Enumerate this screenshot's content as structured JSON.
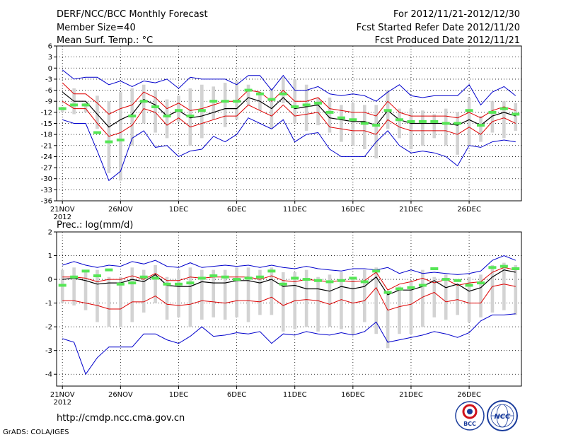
{
  "header": {
    "title": "DERF/NCC/BCC Monthly Forecast",
    "member_size": "Member Size=40",
    "variable": "Mean Surf. Temp.: °C",
    "forecast_for": "For 2012/11/21-2012/12/30",
    "started": "Fcst Started Refer Date 2012/11/20",
    "produced": "Fcst Produced Date 2012/11/21"
  },
  "footer": {
    "url": "http://cmdp.ncc.cma.gov.cn",
    "grads": "GrADS: COLA/IGES",
    "logo_bcc": "BCC",
    "logo_ncc": "NCC"
  },
  "colors": {
    "spread": "#d3d3d3",
    "member": "#55e655",
    "mean": "#000000",
    "inner": "#dd0000",
    "outer": "#0000cc"
  },
  "chart_data": [
    {
      "type": "box",
      "title": "Mean Surf. Temp.: °C",
      "ylabel": "",
      "ylim": [
        -36,
        6
      ],
      "yticks": [
        6,
        3,
        0,
        -3,
        -6,
        -9,
        -12,
        -15,
        -18,
        -21,
        -24,
        -27,
        -30,
        -33,
        -36
      ],
      "xlim": [
        0.5,
        40.5
      ],
      "x_tick_labels": [
        {
          "day": 1,
          "label": "21NOV",
          "sublabel": "2012"
        },
        {
          "day": 6,
          "label": "26NOV"
        },
        {
          "day": 11,
          "label": "1DEC"
        },
        {
          "day": 16,
          "label": "6DEC"
        },
        {
          "day": 21,
          "label": "11DEC"
        },
        {
          "day": 26,
          "label": "16DEC"
        },
        {
          "day": 31,
          "label": "21DEC"
        },
        {
          "day": 36,
          "label": "26DEC"
        }
      ],
      "days": [
        1,
        2,
        3,
        4,
        5,
        6,
        7,
        8,
        9,
        10,
        11,
        12,
        13,
        14,
        15,
        16,
        17,
        18,
        19,
        20,
        21,
        22,
        23,
        24,
        25,
        26,
        27,
        28,
        29,
        30,
        31,
        32,
        33,
        34,
        35,
        36,
        37,
        38,
        39,
        40
      ],
      "outer_upper": [
        -0.5,
        -3,
        -2.5,
        -2.5,
        -4.5,
        -3.5,
        -5,
        -3.5,
        -4,
        -3,
        -5.5,
        -2.5,
        -3,
        -3,
        -3,
        -4.5,
        -2,
        -2,
        -6,
        -2,
        -6,
        -6,
        -5,
        -7,
        -7.5,
        -7,
        -7.5,
        -9,
        -6.5,
        -4.5,
        -7.5,
        -8,
        -7.5,
        -7.5,
        -7.5,
        -4.5,
        -10,
        -6.5,
        -5,
        -7.5
      ],
      "inner_upper": [
        -4,
        -7,
        -7,
        -9.5,
        -12.5,
        -11,
        -10,
        -6.5,
        -8,
        -11,
        -9.5,
        -11.5,
        -11,
        -10,
        -9,
        -9,
        -6,
        -6.5,
        -9,
        -6,
        -9,
        -9,
        -8,
        -11,
        -11.5,
        -12,
        -12,
        -13,
        -9,
        -12,
        -13,
        -13,
        -13,
        -13,
        -13.5,
        -12,
        -13.5,
        -11.5,
        -10.5,
        -11.5
      ],
      "ens_mean": [
        -6.5,
        -9,
        -9,
        -12.5,
        -16,
        -14,
        -12.5,
        -8.5,
        -10,
        -13,
        -11.5,
        -13.5,
        -13,
        -12,
        -11,
        -11,
        -8,
        -9,
        -11,
        -8,
        -11,
        -10.5,
        -10,
        -13.5,
        -14,
        -14.5,
        -14.5,
        -15.5,
        -11.5,
        -14,
        -15,
        -15,
        -15,
        -15,
        -15.5,
        -14,
        -15.5,
        -13,
        -12,
        -13
      ],
      "inner_lower": [
        -9,
        -11,
        -11,
        -15,
        -18.5,
        -17.5,
        -15.5,
        -11,
        -12,
        -15.5,
        -13.5,
        -16,
        -15,
        -14,
        -13,
        -13,
        -10,
        -11.5,
        -13,
        -10,
        -13,
        -12.5,
        -12,
        -16,
        -16.5,
        -17,
        -17,
        -18,
        -14,
        -16,
        -17,
        -17,
        -17,
        -17,
        -18,
        -16,
        -18,
        -14.5,
        -13.5,
        -15
      ],
      "outer_lower": [
        -14,
        -15,
        -15,
        -22.5,
        -30.5,
        -28,
        -19,
        -17,
        -21.5,
        -21,
        -24,
        -22.5,
        -22,
        -18.5,
        -20,
        -18,
        -13.5,
        -15,
        -16.5,
        -14,
        -20,
        -18,
        -17.5,
        -22,
        -24,
        -24,
        -24,
        -20,
        -17,
        -21,
        -23,
        -22.5,
        -23,
        -24,
        -26.5,
        -21,
        -21.5,
        -20,
        -19.5,
        -20
      ],
      "spread_max": [
        -10.5,
        -5.5,
        -9.5,
        -7.5,
        -9,
        -6.5,
        -5.5,
        -4.5,
        -6,
        -8.5,
        -7.5,
        -5.5,
        -4.5,
        -5,
        -4,
        -3.5,
        -4.5,
        -6.5,
        -5.5,
        -2.5,
        -3,
        -4.5,
        -8,
        -8,
        -10,
        -9.5,
        -10,
        -10,
        -6,
        -11,
        -11,
        -11.5,
        -12.5,
        -11,
        -12,
        -8,
        -13,
        -9,
        -9,
        -9.5
      ],
      "spread_min": [
        -12,
        -12.5,
        -12,
        -16.5,
        -28.5,
        -30.5,
        -21,
        -15,
        -17.5,
        -19,
        -14.5,
        -21,
        -19,
        -14,
        -16,
        -14,
        -10,
        -11.5,
        -16.5,
        -9.5,
        -15,
        -17,
        -15.5,
        -17.5,
        -20,
        -21,
        -22,
        -24.5,
        -16.5,
        -19,
        -22,
        -21,
        -19,
        -21,
        -23.5,
        -21,
        -20,
        -17.5,
        -19,
        -17
      ],
      "member_marks": [
        -11,
        -10,
        -10,
        -17.5,
        -20,
        -19.5,
        -13,
        -9,
        -10.5,
        -13,
        -11.5,
        -13,
        -11.5,
        -9,
        -9,
        -9,
        -6,
        -7,
        -8.5,
        -7,
        -10.5,
        -10,
        -9.5,
        -12,
        -13.5,
        -14,
        -15,
        -15.5,
        -11.5,
        -14,
        -14.5,
        -14.5,
        -14.5,
        -15,
        -15,
        -11.5,
        -15.5,
        -12,
        -11,
        -12.5
      ]
    },
    {
      "type": "box",
      "title": "Prec.: log(mm/d)",
      "ylabel": "",
      "ylim": [
        -4.5,
        2
      ],
      "yticks": [
        2,
        1,
        0,
        -1,
        -2,
        -3,
        -4
      ],
      "xlim": [
        0.5,
        40.5
      ],
      "x_tick_labels": [
        {
          "day": 1,
          "label": "21NOV",
          "sublabel": "2012"
        },
        {
          "day": 6,
          "label": "26NOV"
        },
        {
          "day": 11,
          "label": "1DEC"
        },
        {
          "day": 16,
          "label": "6DEC"
        },
        {
          "day": 21,
          "label": "11DEC"
        },
        {
          "day": 26,
          "label": "16DEC"
        },
        {
          "day": 31,
          "label": "21DEC"
        },
        {
          "day": 36,
          "label": "26DEC"
        }
      ],
      "days": [
        1,
        2,
        3,
        4,
        5,
        6,
        7,
        8,
        9,
        10,
        11,
        12,
        13,
        14,
        15,
        16,
        17,
        18,
        19,
        20,
        21,
        22,
        23,
        24,
        25,
        26,
        27,
        28,
        29,
        30,
        31,
        32,
        33,
        34,
        35,
        36,
        37,
        38,
        39,
        40
      ],
      "outer_upper": [
        0.6,
        0.75,
        0.6,
        0.5,
        0.6,
        0.55,
        0.75,
        0.65,
        0.8,
        0.55,
        0.5,
        0.7,
        0.5,
        0.55,
        0.6,
        0.55,
        0.6,
        0.5,
        0.6,
        0.5,
        0.45,
        0.55,
        0.45,
        0.4,
        0.35,
        0.45,
        0.45,
        0.4,
        0.5,
        0.25,
        0.4,
        0.25,
        0.3,
        0.25,
        0.2,
        0.25,
        0.35,
        0.8,
        1.0,
        0.8
      ],
      "inner_upper": [
        0.1,
        0.1,
        0.05,
        -0.1,
        0,
        0,
        0.15,
        0,
        0.25,
        -0.05,
        -0.05,
        0.1,
        0.05,
        0.1,
        0.1,
        0.1,
        0.1,
        0,
        0.15,
        -0.05,
        -0.1,
        0,
        -0.05,
        -0.1,
        -0.05,
        -0.1,
        -0.05,
        0.3,
        -0.45,
        -0.2,
        -0.1,
        0.05,
        -0.15,
        0,
        -0.25,
        -0.15,
        -0.1,
        0.3,
        0.5,
        0.4
      ],
      "ens_mean": [
        0,
        0.05,
        -0.05,
        -0.2,
        -0.15,
        -0.15,
        0,
        -0.1,
        0.2,
        -0.25,
        -0.3,
        -0.3,
        -0.1,
        -0.15,
        -0.15,
        -0.05,
        -0.05,
        -0.15,
        0,
        -0.3,
        -0.25,
        -0.4,
        -0.4,
        -0.5,
        -0.3,
        -0.4,
        -0.3,
        0.1,
        -0.65,
        -0.45,
        -0.45,
        -0.3,
        -0.05,
        -0.35,
        -0.2,
        -0.5,
        -0.35,
        0.1,
        0.4,
        0.3
      ],
      "inner_lower": [
        -0.9,
        -0.9,
        -1.0,
        -1.1,
        -1.25,
        -1.25,
        -0.95,
        -0.95,
        -0.7,
        -1.05,
        -1.1,
        -1.05,
        -0.9,
        -0.95,
        -1.0,
        -0.9,
        -0.9,
        -0.95,
        -0.75,
        -1.1,
        -0.9,
        -0.85,
        -0.9,
        -1.05,
        -0.85,
        -1.0,
        -0.9,
        -0.35,
        -1.3,
        -1.15,
        -1.05,
        -0.75,
        -0.55,
        -0.95,
        -0.85,
        -1.0,
        -1.0,
        -0.3,
        -0.2,
        -0.3
      ],
      "outer_lower": [
        -2.5,
        -2.65,
        -4.0,
        -3.3,
        -2.85,
        -2.85,
        -2.85,
        -2.3,
        -2.3,
        -2.55,
        -2.7,
        -2.4,
        -2.0,
        -2.4,
        -2.35,
        -2.25,
        -2.3,
        -2.2,
        -2.7,
        -2.3,
        -2.35,
        -2.2,
        -2.3,
        -2.35,
        -2.25,
        -2.35,
        -2.2,
        -1.8,
        -2.65,
        -2.55,
        -2.45,
        -2.35,
        -2.2,
        -2.3,
        -2.45,
        -2.25,
        -1.75,
        -1.5,
        -1.5,
        -1.45
      ],
      "spread_max": [
        0.4,
        0.5,
        0.4,
        0.4,
        0.1,
        0.1,
        0.5,
        0.4,
        0.6,
        0.1,
        0.4,
        0.5,
        0.4,
        0.4,
        0.4,
        0.5,
        0.5,
        0.4,
        0.5,
        0.3,
        0.3,
        0.4,
        0.1,
        0.2,
        0.3,
        0.1,
        0.4,
        0.5,
        -0.5,
        -0.3,
        -0.1,
        0.4,
        0.1,
        0.2,
        -0.2,
        0.1,
        0.2,
        0.6,
        0.7,
        0.6
      ],
      "spread_min": [
        -1.0,
        -1.1,
        -1.3,
        -1.8,
        -2.0,
        -2.0,
        -1.8,
        -1.4,
        -1.0,
        -1.7,
        -1.6,
        -2.0,
        -1.7,
        -1.6,
        -1.7,
        -1.6,
        -1.8,
        -1.5,
        -1.5,
        -2.2,
        -2.1,
        -2.0,
        -2.2,
        -2.0,
        -2.1,
        -2.3,
        -1.8,
        -2.3,
        -2.9,
        -2.3,
        -2.3,
        -2.0,
        -1.6,
        -1.7,
        -1.5,
        -1.8,
        -1.6,
        -1.4,
        -1.3,
        -1.5
      ],
      "member_marks": [
        -0.25,
        0.1,
        0.35,
        0.15,
        0.4,
        -0.2,
        -0.15,
        0.1,
        0.05,
        -0.2,
        -0.2,
        -0.15,
        0.05,
        0.15,
        0.1,
        0.0,
        0.05,
        0.1,
        0.35,
        -0.2,
        0.05,
        0.0,
        -0.05,
        -0.1,
        -0.05,
        0.05,
        -0.1,
        0.35,
        -0.55,
        -0.4,
        -0.35,
        -0.25,
        0.45,
        0.0,
        -0.05,
        -0.25,
        -0.15,
        0.5,
        0.55,
        0.45
      ]
    }
  ]
}
